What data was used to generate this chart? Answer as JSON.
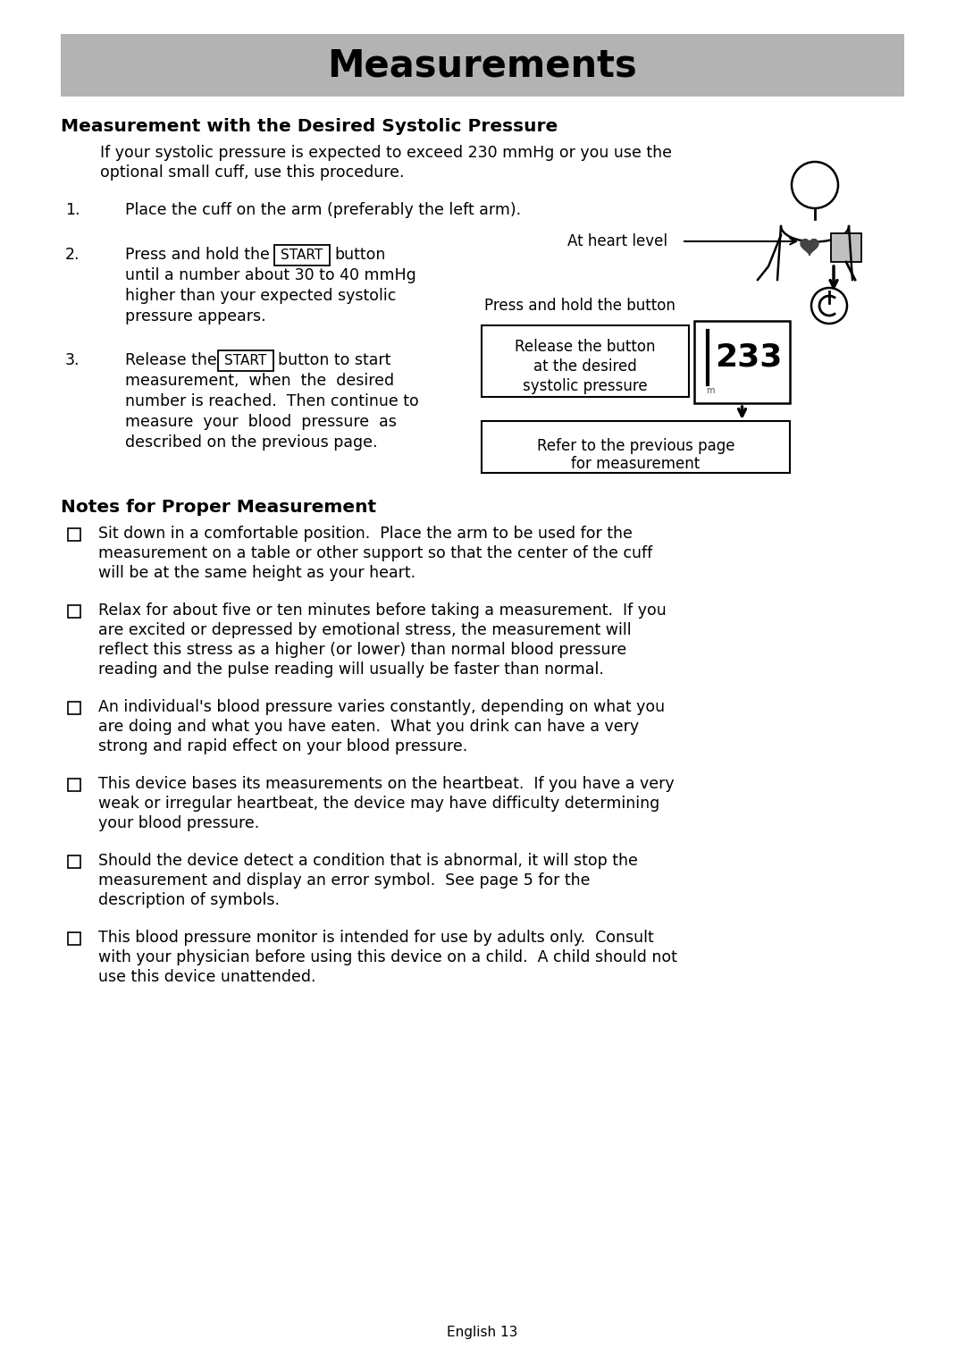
{
  "page_bg": "#ffffff",
  "header_bg": "#b3b3b3",
  "header_text": "Measurements",
  "section1_title": "Measurement with the Desired Systolic Pressure",
  "section1_intro_line1": "If your systolic pressure is expected to exceed 230 mmHg or you use the",
  "section1_intro_line2": "optional small cuff, use this procedure.",
  "step1_num": "1.",
  "step1_text": "Place the cuff on the arm (preferably the left arm).",
  "step2_num": "2.",
  "step2_pre": "Press and hold the",
  "step2_btn": "START",
  "step2_btn_post": "button",
  "step2_rest_line1": "until a number about 30 to 40 mmHg",
  "step2_rest_line2": "higher than your expected systolic",
  "step2_rest_line3": "pressure appears.",
  "step3_num": "3.",
  "step3_pre": "Release the",
  "step3_btn": "START",
  "step3_btn_post": "button to start",
  "step3_rest_line1": "measurement,  when  the  desired",
  "step3_rest_line2": "number is reached.  Then continue to",
  "step3_rest_line3": "measure  your  blood  pressure  as",
  "step3_rest_line4": "described on the previous page.",
  "at_heart_level": "At heart level",
  "press_hold_btn": "Press and hold the button",
  "release_btn_label_line1": "Release the button",
  "release_btn_label_line2": "at the desired",
  "release_btn_label_line3": "systolic pressure",
  "refer_label_line1": "Refer to the previous page",
  "refer_label_line2": "for measurement",
  "section2_title": "Notes for Proper Measurement",
  "bullet1_line1": "Sit down in a comfortable position.  Place the arm to be used for the",
  "bullet1_line2": "measurement on a table or other support so that the center of the cuff",
  "bullet1_line3": "will be at the same height as your heart.",
  "bullet2_line1": "Relax for about five or ten minutes before taking a measurement.  If you",
  "bullet2_line2": "are excited or depressed by emotional stress, the measurement will",
  "bullet2_line3": "reflect this stress as a higher (or lower) than normal blood pressure",
  "bullet2_line4": "reading and the pulse reading will usually be faster than normal.",
  "bullet3_line1": "An individual's blood pressure varies constantly, depending on what you",
  "bullet3_line2": "are doing and what you have eaten.  What you drink can have a very",
  "bullet3_line3": "strong and rapid effect on your blood pressure.",
  "bullet4_line1": "This device bases its measurements on the heartbeat.  If you have a very",
  "bullet4_line2": "weak or irregular heartbeat, the device may have difficulty determining",
  "bullet4_line3": "your blood pressure.",
  "bullet5_line1": "Should the device detect a condition that is abnormal, it will stop the",
  "bullet5_line2": "measurement and display an error symbol.  See page 5 for the",
  "bullet5_line3": "description of symbols.",
  "bullet6_line1": "This blood pressure monitor is intended for use by adults only.  Consult",
  "bullet6_line2": "with your physician before using this device on a child.  A child should not",
  "bullet6_line3": "use this device unattended.",
  "footer": "English 13",
  "text_color": "#000000",
  "body_font": "DejaVu Sans",
  "lmargin": 68,
  "rmargin": 1012,
  "indent": 112,
  "step_indent": 140,
  "bullet_indent": 110,
  "dpi": 100
}
